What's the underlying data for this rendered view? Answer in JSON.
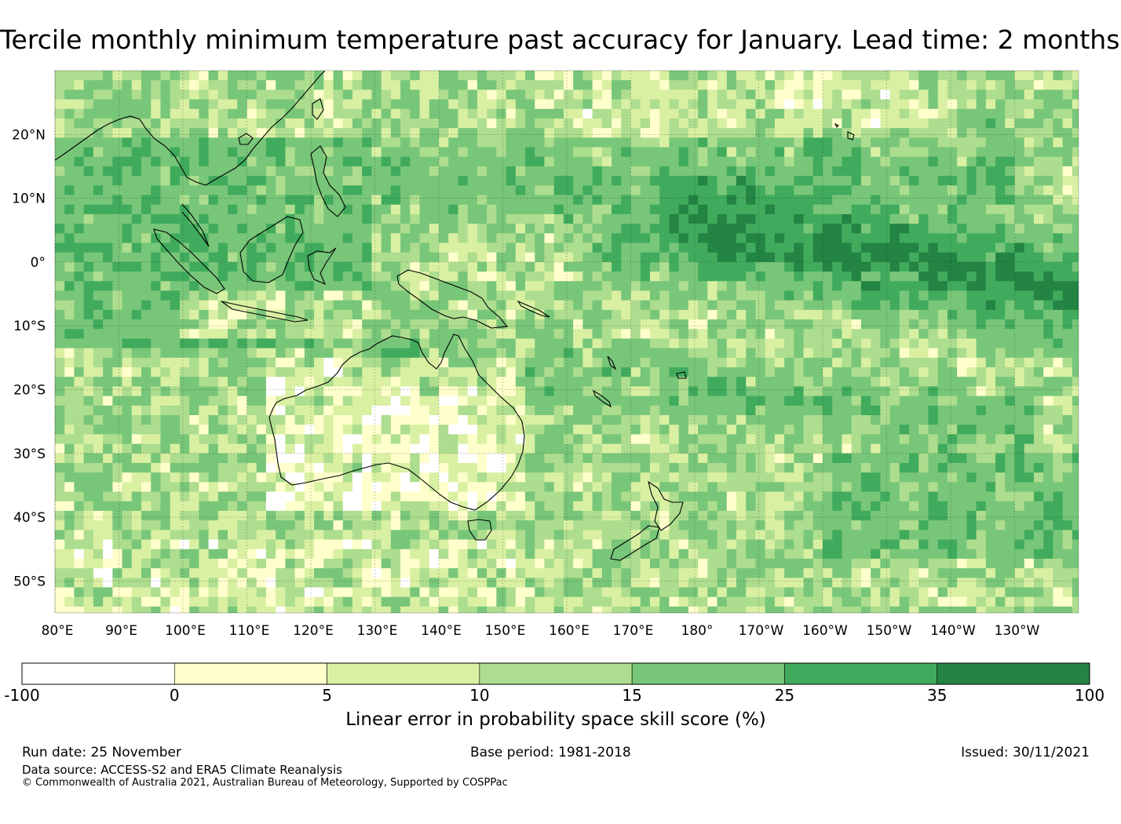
{
  "title": "Tercile monthly minimum temperature past accuracy for January. Lead time: 2 months",
  "map": {
    "region": "Western Pacific, Maritime Continent and Australia",
    "lat_labels": [
      "20°N",
      "10°N",
      "0°",
      "10°S",
      "20°S",
      "30°S",
      "40°S",
      "50°S"
    ],
    "lon_labels": [
      "80°E",
      "90°E",
      "100°E",
      "110°E",
      "120°E",
      "130°E",
      "140°E",
      "150°E",
      "160°E",
      "170°E",
      "180°",
      "170°W",
      "160°W",
      "150°W",
      "140°W",
      "130°W"
    ]
  },
  "colorbar": {
    "ticks": [
      "-100",
      "0",
      "5",
      "10",
      "15",
      "25",
      "35",
      "100"
    ],
    "colors": [
      "#ffffff",
      "#ffffcc",
      "#d9f0a3",
      "#addd8e",
      "#78c679",
      "#41ab5d",
      "#238443"
    ],
    "label": "Linear error in probability space skill score (%)"
  },
  "footer": {
    "run_date": "Run date: 25 November",
    "base_period": "Base period: 1981-2018",
    "issued": "Issued: 30/11/2021",
    "data_source": "Data source: ACCESS-S2 and ERA5 Climate Reanalysis",
    "copyright": "© Commonwealth of Australia 2021, Australian Bureau of Meteorology, Supported by COSPPac"
  }
}
